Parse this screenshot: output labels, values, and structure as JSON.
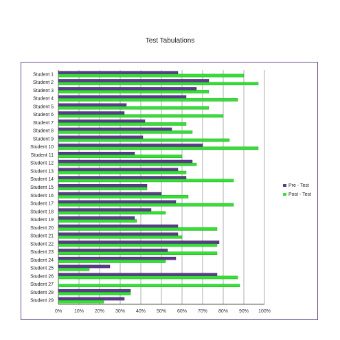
{
  "chart_data": {
    "type": "bar",
    "orientation": "horizontal",
    "title": "Test Tabulations",
    "xlabel": "",
    "ylabel": "",
    "xlim": [
      0,
      100
    ],
    "x_ticks": [
      "0%",
      "10%",
      "20%",
      "30%",
      "40%",
      "50%",
      "60%",
      "70%",
      "80%",
      "90%",
      "100%"
    ],
    "grid": true,
    "legend_position": "right",
    "categories": [
      "Student 1",
      "Student 2",
      "Student 3",
      "Student 4",
      "Student 5",
      "Student 6",
      "Student 7",
      "Student 8",
      "Student 9",
      "Student 10",
      "Student 11",
      "Student 12",
      "Student 13",
      "Student 14",
      "Student 15",
      "Student 16",
      "Student 17",
      "Student 18",
      "Student 19",
      "Student 20",
      "Student 21",
      "Student 22",
      "Student 23",
      "Student 24",
      "Student 25",
      "Student 26",
      "Student 27",
      "Student 28",
      "Student 29"
    ],
    "series": [
      {
        "name": "Pre - Test",
        "color": "#5b3a8c",
        "values": [
          58,
          73,
          67,
          62,
          33,
          32,
          42,
          55,
          41,
          70,
          37,
          65,
          58,
          62,
          43,
          50,
          57,
          45,
          37,
          58,
          58,
          78,
          53,
          57,
          25,
          77,
          0,
          35,
          32
        ]
      },
      {
        "name": "Post - Test",
        "color": "#33e033",
        "values": [
          90,
          97,
          73,
          87,
          73,
          80,
          62,
          65,
          83,
          97,
          60,
          67,
          62,
          85,
          43,
          63,
          85,
          52,
          38,
          77,
          60,
          77,
          77,
          52,
          15,
          87,
          88,
          35,
          22
        ]
      }
    ]
  }
}
